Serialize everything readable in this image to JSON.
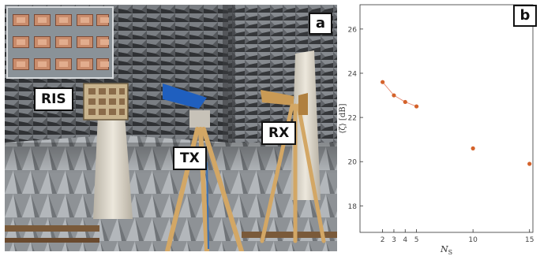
{
  "panel_a": {
    "letter": "a",
    "labels": {
      "ris": "RIS",
      "tx": "TX",
      "rx": "RX"
    }
  },
  "panel_b": {
    "letter": "b"
  },
  "chart_data": {
    "type": "scatter",
    "x": [
      2,
      3,
      4,
      5,
      10,
      15
    ],
    "y": [
      23.6,
      23.0,
      22.7,
      22.5,
      20.6,
      19.9
    ],
    "connected_x": [
      2,
      3,
      4,
      5
    ],
    "xlabel": "N_S",
    "ylabel": "⟨ζ⟩ [dB]",
    "xticks": [
      2,
      3,
      4,
      5,
      10,
      15
    ],
    "yticks": [
      18,
      20,
      22,
      24,
      26
    ],
    "xlim": [
      0,
      15.3
    ],
    "ylim": [
      16.8,
      27.1
    ],
    "grid": false,
    "point_color": "#d4622a",
    "line_color": "#e8907a"
  }
}
